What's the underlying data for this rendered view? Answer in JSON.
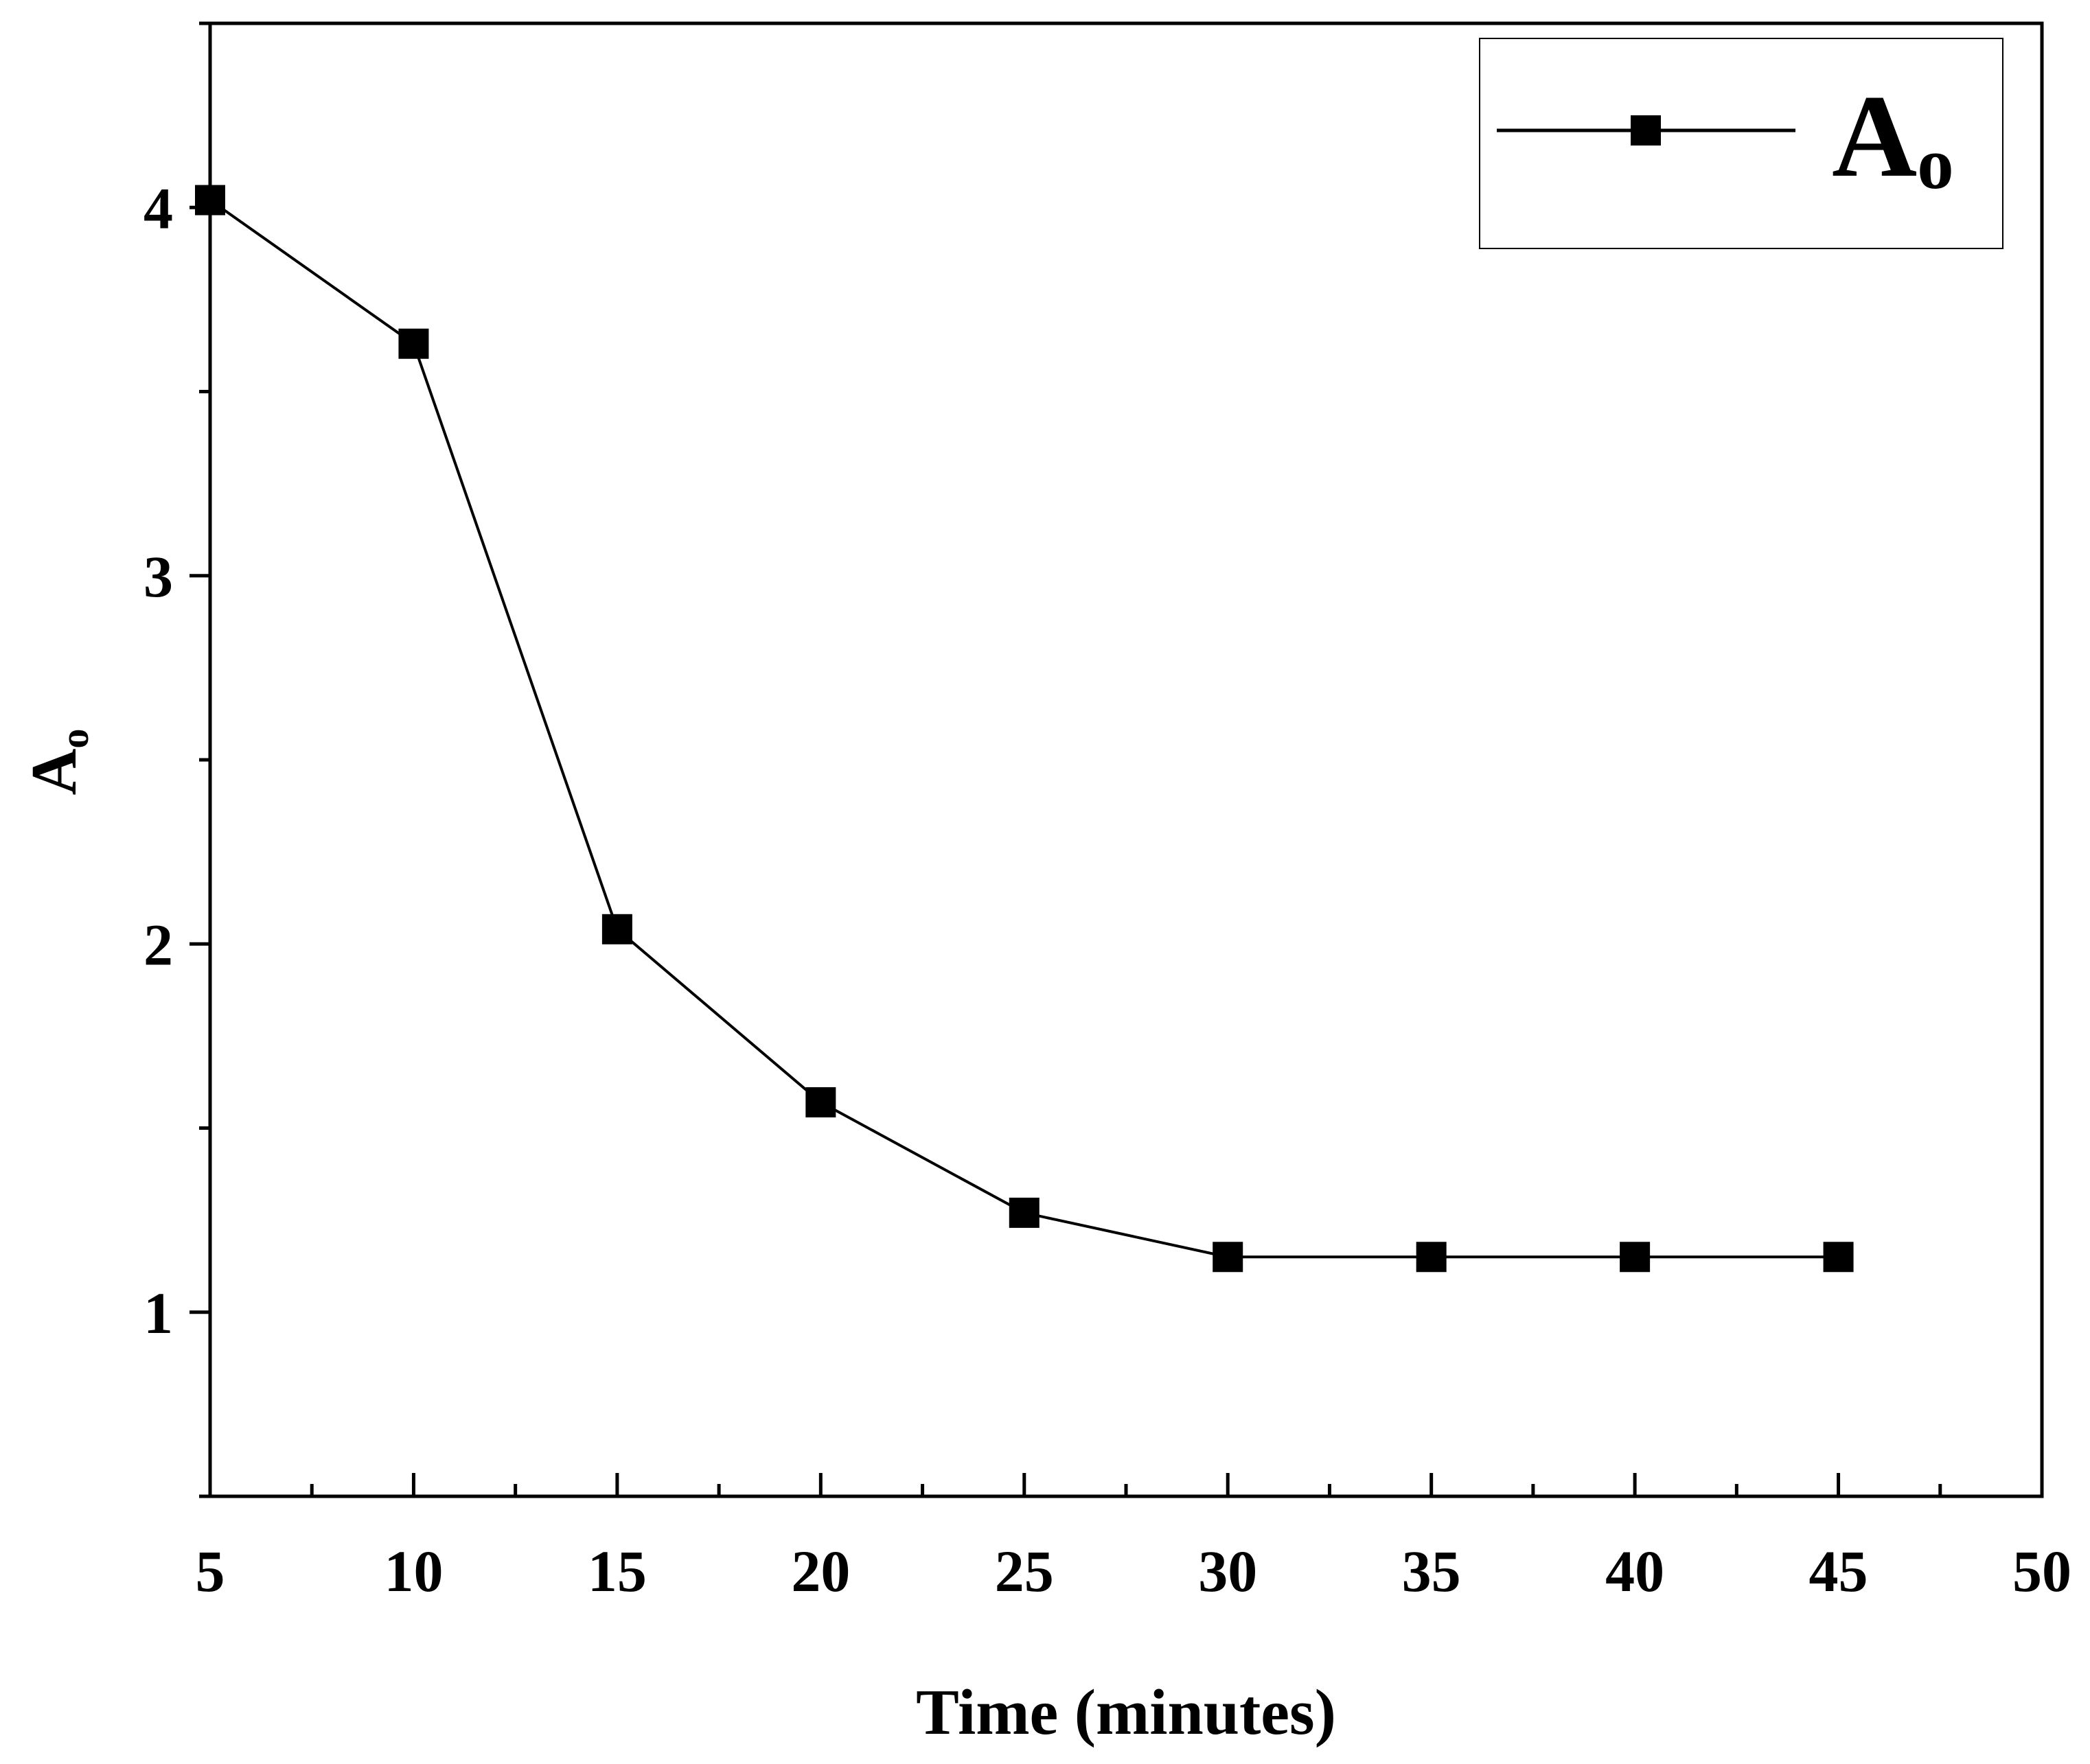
{
  "chart_data": {
    "type": "line",
    "title": "",
    "xlabel": "Time (minutes)",
    "ylabel": {
      "base": "A",
      "sub": "o"
    },
    "xlim": [
      5,
      50
    ],
    "ylim": [
      0.5,
      4.5
    ],
    "xticks": [
      5,
      10,
      15,
      20,
      25,
      30,
      35,
      40,
      45,
      50
    ],
    "yticks": [
      1,
      2,
      3,
      4
    ],
    "xtick_labels": [
      "5",
      "10",
      "15",
      "20",
      "25",
      "30",
      "35",
      "40",
      "45",
      "50"
    ],
    "ytick_labels": [
      "1",
      "2",
      "3",
      "4"
    ],
    "x_minor_step": 2.5,
    "y_minor_step": 0.5,
    "legend_position": "top-right",
    "series": [
      {
        "name": {
          "base": "A",
          "sub": "o"
        },
        "marker": "square",
        "color": "#000000",
        "x": [
          5,
          10,
          15,
          20,
          25,
          30,
          35,
          40,
          45
        ],
        "values": [
          4.02,
          3.63,
          2.04,
          1.57,
          1.27,
          1.15,
          1.15,
          1.15,
          1.15
        ]
      }
    ]
  }
}
